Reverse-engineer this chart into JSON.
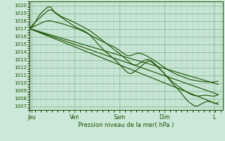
{
  "xlabel": "Pression niveau de la mer( hPa )",
  "xlabels": [
    "Jeu",
    "Ven",
    "Sam",
    "Dim",
    "L"
  ],
  "xlim": [
    0,
    4.3
  ],
  "ylim": [
    1006.5,
    1020.5
  ],
  "yticks": [
    1007,
    1008,
    1009,
    1010,
    1011,
    1012,
    1013,
    1014,
    1015,
    1016,
    1017,
    1018,
    1019,
    1020
  ],
  "xtick_pos": [
    0.05,
    1.0,
    2.0,
    3.0,
    4.1
  ],
  "bg_color": "#cce8d8",
  "line_color": "#1a5200",
  "grid_major_color": "#88b898",
  "grid_minor_color": "#aaceba"
}
